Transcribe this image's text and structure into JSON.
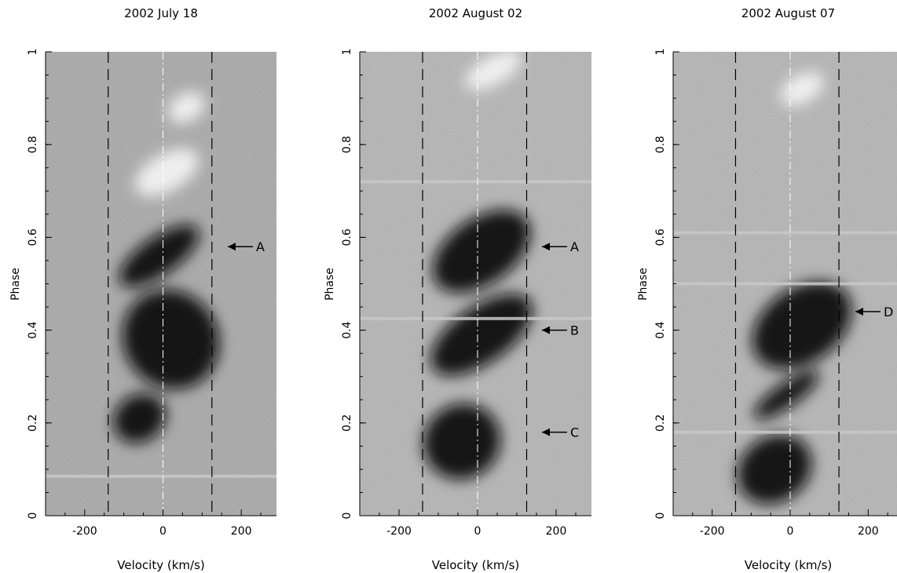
{
  "chart_data": [
    {
      "type": "heatmap",
      "title": "2002 July 18",
      "xlabel": "Velocity (km/s)",
      "ylabel": "Phase",
      "xlim": [
        -300,
        290
      ],
      "ylim": [
        0,
        1
      ],
      "xticks": [
        -200,
        0,
        200
      ],
      "yticks": [
        0,
        0.2,
        0.4,
        0.6,
        0.8,
        1
      ],
      "ytick_labels": [
        "0",
        "0.2",
        "0.4",
        "0.6",
        "0.8",
        "1"
      ],
      "dashed_lines": [
        -140,
        125
      ],
      "center_line": 0,
      "markers": [
        {
          "label": "A",
          "phase": 0.58
        }
      ],
      "features": [
        {
          "kind": "dark",
          "vel": 20,
          "phase": 0.38,
          "dv": 120,
          "dp": 0.11
        },
        {
          "kind": "dark",
          "vel": -10,
          "phase": 0.56,
          "dv": 120,
          "dp": 0.04
        },
        {
          "kind": "dark",
          "vel": -60,
          "phase": 0.21,
          "dv": 70,
          "dp": 0.05
        },
        {
          "kind": "bright",
          "vel": 10,
          "phase": 0.74,
          "dv": 90,
          "dp": 0.04
        },
        {
          "kind": "bright",
          "vel": 60,
          "phase": 0.88,
          "dv": 50,
          "dp": 0.03
        }
      ],
      "streaks": [
        0.085
      ]
    },
    {
      "type": "heatmap",
      "title": "2002 August 02",
      "xlabel": "Velocity (km/s)",
      "ylabel": "Phase",
      "xlim": [
        -300,
        290
      ],
      "ylim": [
        0,
        1
      ],
      "xticks": [
        -200,
        0,
        200
      ],
      "yticks": [
        0,
        0.2,
        0.4,
        0.6,
        0.8,
        1
      ],
      "ytick_labels": [
        "0",
        "0.2",
        "0.4",
        "0.6",
        "0.8",
        "1"
      ],
      "dashed_lines": [
        -140,
        125
      ],
      "center_line": 0,
      "markers": [
        {
          "label": "A",
          "phase": 0.58
        },
        {
          "label": "B",
          "phase": 0.4
        },
        {
          "label": "C",
          "phase": 0.18
        }
      ],
      "features": [
        {
          "kind": "dark",
          "vel": 10,
          "phase": 0.57,
          "dv": 140,
          "dp": 0.07
        },
        {
          "kind": "dark",
          "vel": 10,
          "phase": 0.39,
          "dv": 150,
          "dp": 0.06
        },
        {
          "kind": "dark",
          "vel": -40,
          "phase": 0.16,
          "dv": 100,
          "dp": 0.08
        },
        {
          "kind": "bright",
          "vel": 40,
          "phase": 0.96,
          "dv": 80,
          "dp": 0.03
        }
      ],
      "streaks": [
        0.425,
        0.72
      ]
    },
    {
      "type": "heatmap",
      "title": "2002 August 07",
      "xlabel": "Velocity (km/s)",
      "ylabel": "Phase",
      "xlim": [
        -300,
        290
      ],
      "ylim": [
        0,
        1
      ],
      "xticks": [
        -200,
        0,
        200
      ],
      "yticks": [
        0,
        0.2,
        0.4,
        0.6,
        0.8,
        1
      ],
      "ytick_labels": [
        "0",
        "0.2",
        "0.4",
        "0.6",
        "0.8",
        "1"
      ],
      "dashed_lines": [
        -140,
        125
      ],
      "center_line": 0,
      "markers": [
        {
          "label": "D",
          "phase": 0.44
        }
      ],
      "features": [
        {
          "kind": "dark",
          "vel": 30,
          "phase": 0.41,
          "dv": 140,
          "dp": 0.08
        },
        {
          "kind": "dark",
          "vel": -10,
          "phase": 0.26,
          "dv": 100,
          "dp": 0.025
        },
        {
          "kind": "dark",
          "vel": -40,
          "phase": 0.1,
          "dv": 100,
          "dp": 0.07
        },
        {
          "kind": "bright",
          "vel": 30,
          "phase": 0.92,
          "dv": 60,
          "dp": 0.03
        }
      ],
      "streaks": [
        0.18,
        0.5,
        0.61
      ]
    }
  ]
}
